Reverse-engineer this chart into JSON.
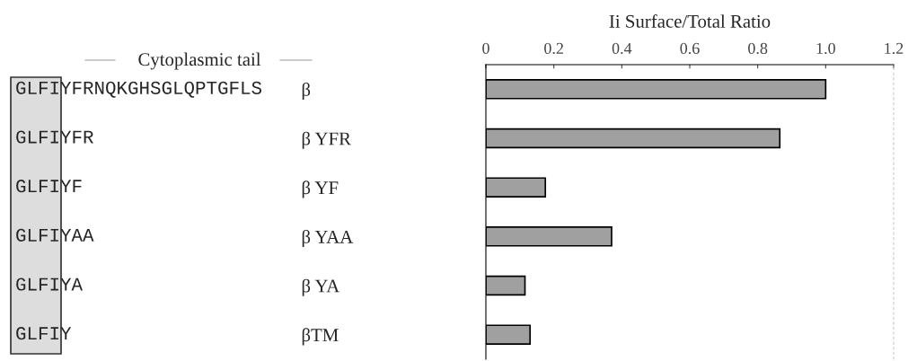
{
  "chart_data": {
    "type": "bar",
    "orientation": "horizontal",
    "xlabel": "Ii Surface/Total Ratio",
    "categories": [
      "β",
      "β YFR",
      "β YF",
      "β YAA",
      "β YA",
      "βTM"
    ],
    "values": [
      1.0,
      0.865,
      0.175,
      0.37,
      0.115,
      0.13
    ],
    "color": "#a0a0a0",
    "xlim": [
      0,
      1.2
    ],
    "xticks": [
      0,
      0.2,
      0.4,
      0.6,
      0.8,
      {
        "value": 1.0,
        "label": "1.0"
      },
      1.2
    ],
    "grid": false,
    "legend": false,
    "annotations": [
      "Cytoplasmic tail",
      "GLFIYFRNQKGHSGLQPTGFLS",
      "GLFIYFR",
      "GLFIYF",
      "GLFIYAA",
      "GLFIYA",
      "GLFIY"
    ]
  }
}
